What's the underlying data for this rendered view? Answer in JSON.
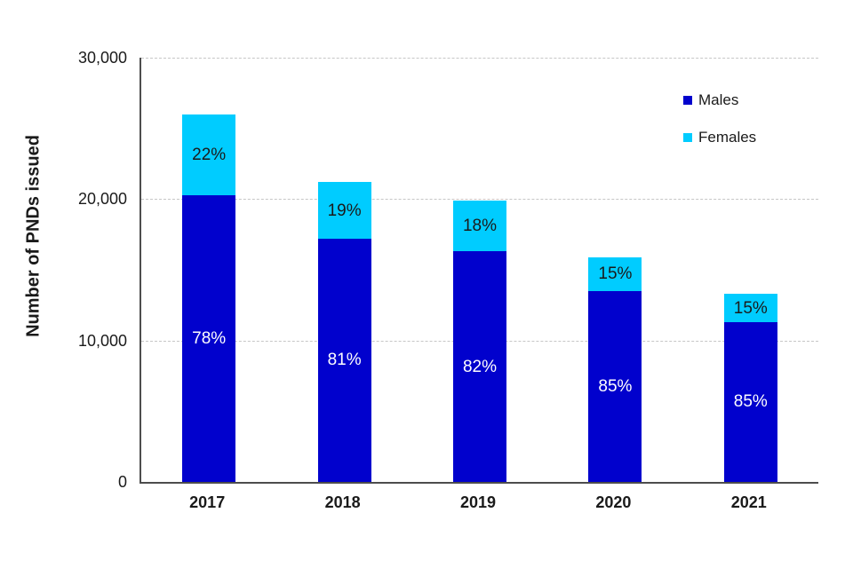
{
  "chart_data": {
    "type": "bar",
    "stacked": true,
    "title": "",
    "xlabel": "",
    "ylabel": "Number of PNDs issued",
    "categories": [
      "2017",
      "2018",
      "2019",
      "2020",
      "2021"
    ],
    "series": [
      {
        "name": "Males",
        "color": "#0101CD",
        "label_color": "#ffffff",
        "values": [
          20300,
          17200,
          16300,
          13500,
          11300
        ],
        "labels": [
          "78%",
          "81%",
          "82%",
          "85%",
          "85%"
        ]
      },
      {
        "name": "Females",
        "color": "#00CCFF",
        "label_color": "#1a1a1a",
        "values": [
          5700,
          4000,
          3600,
          2400,
          2000
        ],
        "labels": [
          "22%",
          "19%",
          "18%",
          "15%",
          "15%"
        ]
      }
    ],
    "totals": [
      26000,
      21200,
      19900,
      15900,
      13300
    ],
    "ylim": [
      0,
      30000
    ],
    "yticks": [
      0,
      10000,
      20000,
      30000
    ],
    "ytick_labels": [
      "0",
      "10,000",
      "20,000",
      "30,000"
    ],
    "grid": "horizontal-dashed",
    "legend_position": "top-right"
  }
}
